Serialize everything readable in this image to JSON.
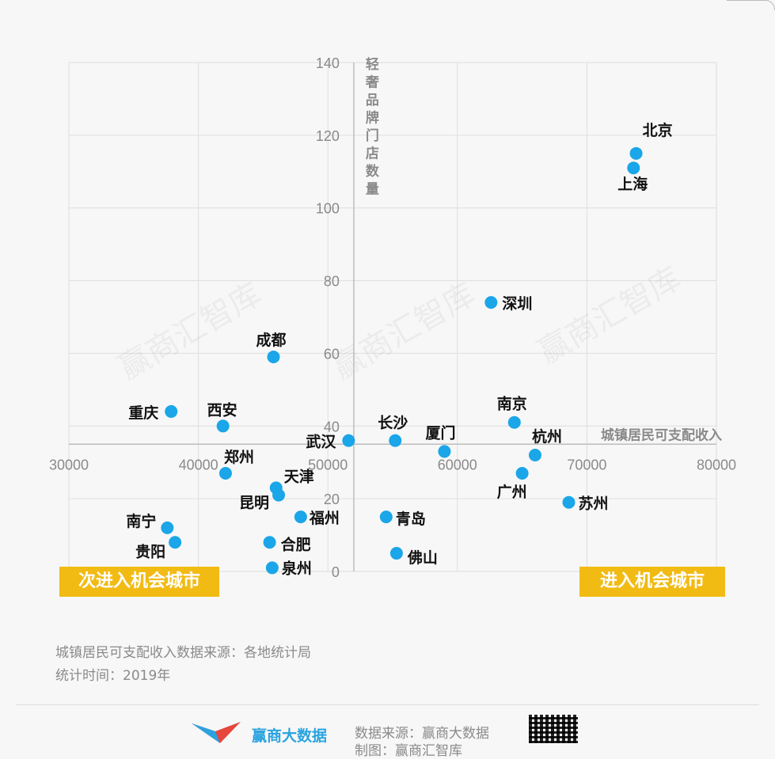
{
  "chart_data": {
    "type": "scatter",
    "xlabel": "城镇居民可支配收入",
    "ylabel": "轻奢品牌门店数量",
    "xlim": [
      30000,
      80000
    ],
    "ylim": [
      0,
      140
    ],
    "xticks": [
      "30000",
      "40000",
      "50000",
      "60000",
      "70000",
      "80000"
    ],
    "yticks": [
      "0",
      "20",
      "40",
      "60",
      "80",
      "100",
      "120",
      "140"
    ],
    "axis_cross": {
      "x": 52000,
      "y": 35
    },
    "grid": true,
    "point_color": "#1aa6e8",
    "points": [
      {
        "name": "北京",
        "x": 73800,
        "y": 115
      },
      {
        "name": "上海",
        "x": 73600,
        "y": 111
      },
      {
        "name": "深圳",
        "x": 62600,
        "y": 74
      },
      {
        "name": "成都",
        "x": 45800,
        "y": 59
      },
      {
        "name": "重庆",
        "x": 37900,
        "y": 44
      },
      {
        "name": "西安",
        "x": 41900,
        "y": 40
      },
      {
        "name": "南京",
        "x": 64400,
        "y": 41
      },
      {
        "name": "长沙",
        "x": 55200,
        "y": 36
      },
      {
        "name": "武汉",
        "x": 51600,
        "y": 36
      },
      {
        "name": "厦门",
        "x": 59000,
        "y": 33
      },
      {
        "name": "杭州",
        "x": 66000,
        "y": 32
      },
      {
        "name": "郑州",
        "x": 42100,
        "y": 27
      },
      {
        "name": "广州",
        "x": 65000,
        "y": 27
      },
      {
        "name": "天津",
        "x": 46000,
        "y": 23
      },
      {
        "name": "昆明",
        "x": 46200,
        "y": 21
      },
      {
        "name": "苏州",
        "x": 68600,
        "y": 19
      },
      {
        "name": "福州",
        "x": 47900,
        "y": 15
      },
      {
        "name": "青岛",
        "x": 54500,
        "y": 15
      },
      {
        "name": "南宁",
        "x": 37600,
        "y": 12
      },
      {
        "name": "贵阳",
        "x": 38200,
        "y": 8
      },
      {
        "name": "合肥",
        "x": 45500,
        "y": 8
      },
      {
        "name": "佛山",
        "x": 55300,
        "y": 5
      },
      {
        "name": "泉州",
        "x": 45700,
        "y": 1
      }
    ]
  },
  "watermark": "赢商汇智库",
  "quadrants": {
    "left_badge": "次进入机会城市",
    "right_badge": "进入机会城市",
    "badge_color": "#f2bb14"
  },
  "notes": {
    "source_note": "城镇居民可支配收入数据来源：各地统计局",
    "time_note": "统计时间：2019年"
  },
  "footer": {
    "brand": "赢商大数据",
    "source": "数据来源：赢商大数据",
    "source2": "制图：赢商汇智库"
  }
}
